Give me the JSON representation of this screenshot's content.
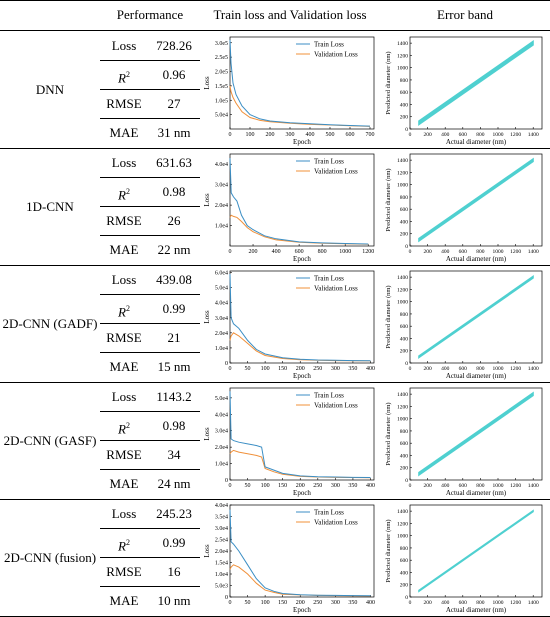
{
  "headers": {
    "performance": "Performance",
    "loss_curves": "Train loss and Validation loss",
    "error_band": "Error band"
  },
  "metric_names": {
    "loss": "Loss",
    "r2": "R",
    "r2_sup": "2",
    "rmse": "RMSE",
    "mae": "MAE"
  },
  "colors": {
    "train": "#3b8ec4",
    "validation": "#f0903a",
    "band": "#4fd0d0"
  },
  "rows": [
    {
      "model": "DNN",
      "loss": "728.26",
      "r2": "0.96",
      "rmse": "27",
      "mae": "31 nm"
    },
    {
      "model": "1D-CNN",
      "loss": "631.63",
      "r2": "0.98",
      "rmse": "26",
      "mae": "22 nm"
    },
    {
      "model": "2D-CNN (GADF)",
      "loss": "439.08",
      "r2": "0.99",
      "rmse": "21",
      "mae": "15 nm"
    },
    {
      "model": "2D-CNN (GASF)",
      "loss": "1143.2",
      "r2": "0.98",
      "rmse": "34",
      "mae": "24 nm"
    },
    {
      "model": "2D-CNN (fusion)",
      "loss": "245.23",
      "r2": "0.99",
      "rmse": "16",
      "mae": "10 nm"
    }
  ],
  "chart_data": [
    {
      "type": "line",
      "model": "DNN",
      "xlabel": "Epoch",
      "ylabel": "Loss",
      "xlim": [
        0,
        720
      ],
      "ylim": [
        0,
        320000
      ],
      "xticks": [
        0,
        100,
        200,
        300,
        400,
        500,
        600,
        700
      ],
      "yticks": [
        50000,
        100000,
        150000,
        200000,
        250000,
        300000
      ],
      "ytick_labels": [
        "5.0e4",
        "1.0e5",
        "1.5e5",
        "2.0e5",
        "2.5e5",
        "3.0e5"
      ],
      "legend": "top-right",
      "series": [
        {
          "name": "Train Loss",
          "x": [
            0,
            5,
            15,
            30,
            60,
            100,
            150,
            200,
            300,
            400,
            500,
            600,
            700
          ],
          "y": [
            310000,
            230000,
            160000,
            120000,
            80000,
            50000,
            35000,
            28000,
            22000,
            18000,
            15000,
            12000,
            10000
          ]
        },
        {
          "name": "Validation Loss",
          "x": [
            0,
            5,
            15,
            30,
            60,
            100,
            150,
            200,
            300,
            400,
            500,
            600,
            700
          ],
          "y": [
            150000,
            130000,
            110000,
            90000,
            60000,
            40000,
            30000,
            25000,
            20000,
            16000,
            14000,
            11000,
            9000
          ]
        }
      ]
    },
    {
      "type": "line",
      "model": "1D-CNN",
      "xlabel": "Epoch",
      "ylabel": "Loss",
      "xlim": [
        0,
        1250
      ],
      "ylim": [
        0,
        45000
      ],
      "xticks": [
        0,
        200,
        400,
        600,
        800,
        1000,
        1200
      ],
      "yticks": [
        10000,
        20000,
        30000,
        40000
      ],
      "ytick_labels": [
        "1.0e4",
        "2.0e4",
        "3.0e4",
        "4.0e4"
      ],
      "legend": "top-right",
      "series": [
        {
          "name": "Train Loss",
          "x": [
            0,
            10,
            30,
            60,
            100,
            150,
            200,
            300,
            400,
            600,
            800,
            1000,
            1200
          ],
          "y": [
            43000,
            26000,
            24000,
            22000,
            15000,
            10000,
            8000,
            5000,
            3500,
            2000,
            1500,
            1200,
            1000
          ]
        },
        {
          "name": "Validation Loss",
          "x": [
            0,
            10,
            30,
            60,
            100,
            150,
            200,
            300,
            400,
            600,
            800,
            1000,
            1200
          ],
          "y": [
            14000,
            15000,
            14500,
            14000,
            12000,
            9000,
            7000,
            4500,
            3000,
            1800,
            1300,
            1100,
            900
          ]
        }
      ]
    },
    {
      "type": "line",
      "model": "2D-CNN (GADF)",
      "xlabel": "Epoch",
      "ylabel": "Loss",
      "xlim": [
        0,
        410
      ],
      "ylim": [
        0,
        61000
      ],
      "xticks": [
        0,
        50,
        100,
        150,
        200,
        250,
        300,
        350,
        400
      ],
      "yticks": [
        0,
        10000,
        20000,
        30000,
        40000,
        50000,
        60000
      ],
      "ytick_labels": [
        "0",
        "1.0e4",
        "2.0e4",
        "3.0e4",
        "4.0e4",
        "5.0e4",
        "6.0e4"
      ],
      "legend": "top-right",
      "series": [
        {
          "name": "Train Loss",
          "x": [
            0,
            3,
            10,
            25,
            50,
            75,
            100,
            150,
            200,
            250,
            300,
            350,
            400
          ],
          "y": [
            59000,
            30000,
            26000,
            23000,
            15000,
            9000,
            6000,
            3500,
            2500,
            2000,
            1800,
            1600,
            1500
          ]
        },
        {
          "name": "Validation Loss",
          "x": [
            0,
            3,
            10,
            25,
            50,
            75,
            100,
            150,
            200,
            250,
            300,
            350,
            400
          ],
          "y": [
            15000,
            18000,
            20000,
            18000,
            13000,
            8000,
            5000,
            3000,
            2200,
            1800,
            1600,
            1500,
            1400
          ]
        }
      ]
    },
    {
      "type": "line",
      "model": "2D-CNN (GASF)",
      "xlabel": "Epoch",
      "ylabel": "Loss",
      "xlim": [
        0,
        410
      ],
      "ylim": [
        0,
        56000
      ],
      "xticks": [
        0,
        50,
        100,
        150,
        200,
        250,
        300,
        350,
        400
      ],
      "yticks": [
        0,
        10000,
        20000,
        30000,
        40000,
        50000
      ],
      "ytick_labels": [
        "0",
        "1.0e4",
        "2.0e4",
        "3.0e4",
        "4.0e4",
        "5.0e4"
      ],
      "legend": "top-right",
      "series": [
        {
          "name": "Train Loss",
          "x": [
            0,
            3,
            10,
            25,
            50,
            75,
            90,
            100,
            125,
            150,
            200,
            250,
            300,
            350,
            400
          ],
          "y": [
            54000,
            25000,
            24000,
            23000,
            22000,
            21000,
            20000,
            8000,
            6000,
            4000,
            2500,
            2000,
            1800,
            1600,
            1500
          ]
        },
        {
          "name": "Validation Loss",
          "x": [
            0,
            3,
            10,
            25,
            50,
            75,
            90,
            100,
            125,
            150,
            200,
            250,
            300,
            350,
            400
          ],
          "y": [
            16000,
            17000,
            18000,
            17000,
            16000,
            15000,
            14000,
            7000,
            5000,
            3500,
            2200,
            1800,
            1600,
            1500,
            1400
          ]
        }
      ]
    },
    {
      "type": "line",
      "model": "2D-CNN (fusion)",
      "xlabel": "Epoch",
      "ylabel": "Loss",
      "xlim": [
        0,
        410
      ],
      "ylim": [
        0,
        40000
      ],
      "xticks": [
        0,
        50,
        100,
        150,
        200,
        250,
        300,
        350,
        400
      ],
      "yticks": [
        0,
        5000,
        10000,
        15000,
        20000,
        25000,
        30000,
        35000,
        40000
      ],
      "ytick_labels": [
        "0",
        "5.0e3",
        "1.0e4",
        "1.5e4",
        "2.0e4",
        "2.5e4",
        "3.0e4",
        "3.5e4",
        "4.0e4"
      ],
      "legend": "top-right",
      "series": [
        {
          "name": "Train Loss",
          "x": [
            0,
            3,
            10,
            25,
            50,
            75,
            100,
            125,
            150,
            200,
            250,
            300,
            350,
            400
          ],
          "y": [
            38000,
            24000,
            23000,
            20000,
            14000,
            8000,
            4000,
            2500,
            1500,
            1000,
            800,
            700,
            600,
            500
          ]
        },
        {
          "name": "Validation Loss",
          "x": [
            0,
            3,
            10,
            25,
            50,
            75,
            100,
            125,
            150,
            200,
            250,
            300,
            350,
            400
          ],
          "y": [
            12000,
            13000,
            14000,
            13000,
            10000,
            6000,
            3000,
            2000,
            1200,
            900,
            700,
            600,
            500,
            450
          ]
        }
      ]
    },
    {
      "type": "scatter",
      "model": "DNN",
      "xlabel": "Actual diameter (nm)",
      "ylabel": "Predicted diameter (nm)",
      "xlim": [
        0,
        1500
      ],
      "ylim": [
        0,
        1500
      ],
      "xticks": [
        0,
        200,
        400,
        600,
        800,
        1000,
        1200,
        1400
      ],
      "yticks": [
        0,
        200,
        400,
        600,
        800,
        1000,
        1200,
        1400
      ],
      "band": {
        "x": [
          100,
          1400
        ],
        "y": [
          100,
          1400
        ],
        "half_width": 31
      }
    },
    {
      "type": "scatter",
      "model": "1D-CNN",
      "xlabel": "Actual diameter (nm)",
      "ylabel": "Predicted diameter (nm)",
      "xlim": [
        0,
        1500
      ],
      "ylim": [
        0,
        1500
      ],
      "xticks": [
        0,
        200,
        400,
        600,
        800,
        1000,
        1200,
        1400
      ],
      "yticks": [
        0,
        200,
        400,
        600,
        800,
        1000,
        1200,
        1400
      ],
      "band": {
        "x": [
          100,
          1400
        ],
        "y": [
          100,
          1400
        ],
        "half_width": 22
      }
    },
    {
      "type": "scatter",
      "model": "2D-CNN (GADF)",
      "xlabel": "Actual diameter (nm)",
      "ylabel": "Predicted diameter (nm)",
      "xlim": [
        0,
        1500
      ],
      "ylim": [
        0,
        1500
      ],
      "xticks": [
        0,
        200,
        400,
        600,
        800,
        1000,
        1200,
        1400
      ],
      "yticks": [
        0,
        200,
        400,
        600,
        800,
        1000,
        1200,
        1400
      ],
      "band": {
        "x": [
          100,
          1400
        ],
        "y": [
          100,
          1400
        ],
        "half_width": 15
      }
    },
    {
      "type": "scatter",
      "model": "2D-CNN (GASF)",
      "xlabel": "Actual diameter (nm)",
      "ylabel": "Predicted diameter (nm)",
      "xlim": [
        0,
        1500
      ],
      "ylim": [
        0,
        1500
      ],
      "xticks": [
        0,
        200,
        400,
        600,
        800,
        1000,
        1200,
        1400
      ],
      "yticks": [
        0,
        200,
        400,
        600,
        800,
        1000,
        1200,
        1400
      ],
      "band": {
        "x": [
          100,
          1400
        ],
        "y": [
          100,
          1400
        ],
        "half_width": 24
      }
    },
    {
      "type": "scatter",
      "model": "2D-CNN (fusion)",
      "xlabel": "Actual diameter (nm)",
      "ylabel": "Predicted diameter (nm)",
      "xlim": [
        0,
        1500
      ],
      "ylim": [
        0,
        1500
      ],
      "xticks": [
        0,
        200,
        400,
        600,
        800,
        1000,
        1200,
        1400
      ],
      "yticks": [
        0,
        200,
        400,
        600,
        800,
        1000,
        1200,
        1400
      ],
      "band": {
        "x": [
          100,
          1400
        ],
        "y": [
          100,
          1400
        ],
        "half_width": 10
      }
    }
  ]
}
